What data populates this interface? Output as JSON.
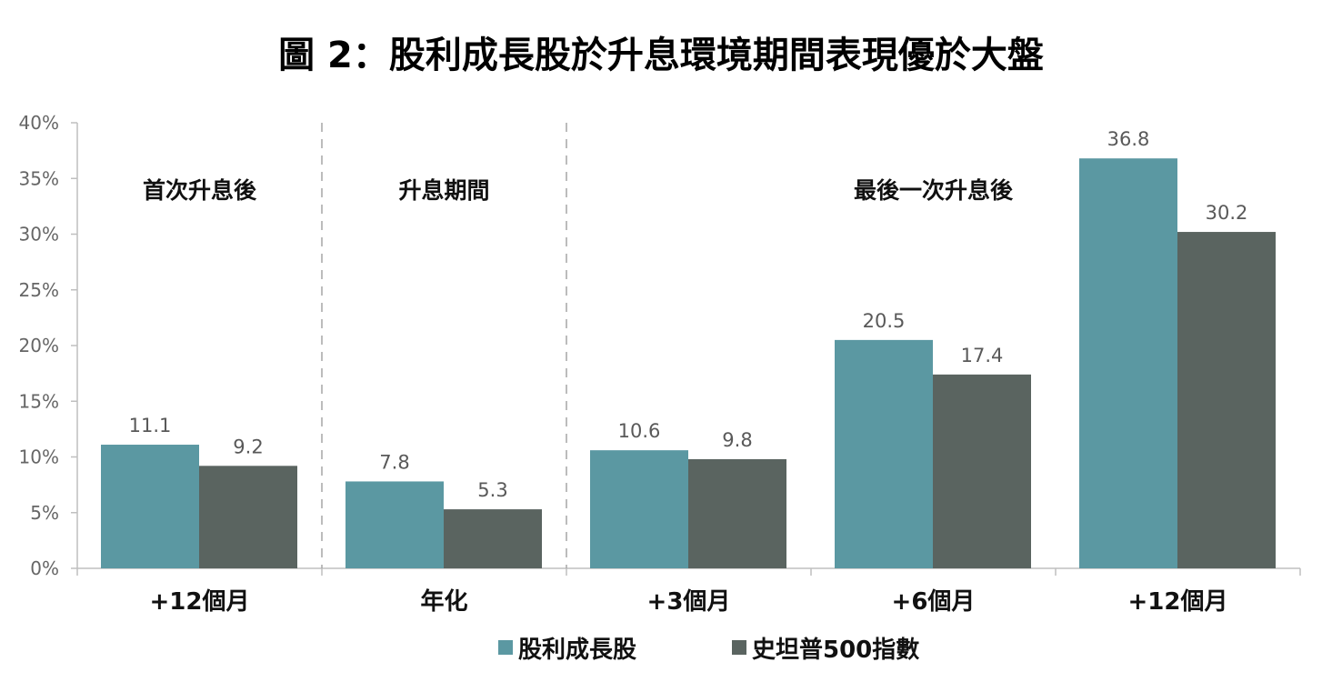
{
  "title": "圖 2：股利成長股於升息環境期間表現優於大盤",
  "chart_data": {
    "type": "bar",
    "title": "圖 2：股利成長股於升息環境期間表現優於大盤",
    "xlabel": "",
    "ylabel": "",
    "ylim": [
      0,
      40
    ],
    "y_ticks": [
      "0%",
      "5%",
      "10%",
      "15%",
      "20%",
      "25%",
      "30%",
      "35%",
      "40%"
    ],
    "categories": [
      "+12個月",
      "年化",
      "+3個月",
      "+6個月",
      "+12個月"
    ],
    "sections": [
      {
        "label": "首次升息後",
        "categories": [
          0
        ]
      },
      {
        "label": "升息期間",
        "categories": [
          1
        ]
      },
      {
        "label": "最後一次升息後",
        "categories": [
          2,
          3,
          4
        ]
      }
    ],
    "series": [
      {
        "name": "股利成長股",
        "values": [
          11.1,
          7.8,
          10.6,
          20.5,
          36.8
        ],
        "labels": [
          "11.1",
          "7.8",
          "10.6",
          "20.5",
          "36.8"
        ],
        "color": "#5b98a2"
      },
      {
        "name": "史坦普500指數",
        "values": [
          9.2,
          5.3,
          9.8,
          17.4,
          30.2
        ],
        "labels": [
          "9.2",
          "5.3",
          "9.8",
          "17.4",
          "30.2"
        ],
        "color": "#5a6460"
      }
    ],
    "grid": false,
    "legend": "bottom-center"
  }
}
